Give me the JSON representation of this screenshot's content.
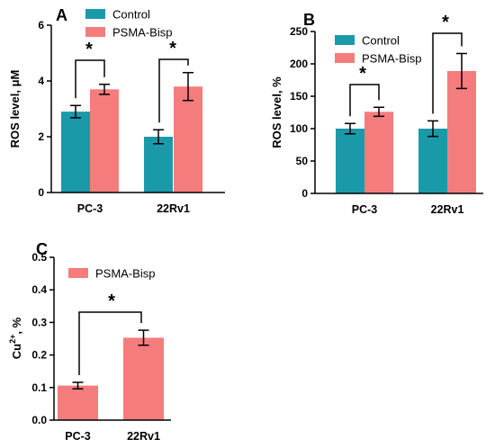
{
  "colors": {
    "control": "#1a9aa8",
    "psma": "#f57c7c",
    "axis": "#000000"
  },
  "chart_data": [
    {
      "id": "A",
      "panel_label": "A",
      "type": "bar",
      "categories": [
        "PC-3",
        "22Rv1"
      ],
      "ylabel": "ROS level, μM",
      "ylim": [
        0,
        6
      ],
      "yticks": [
        "0",
        "2",
        "4",
        "6"
      ],
      "grid": false,
      "legend_position": "top-left",
      "series": [
        {
          "name": "Control",
          "values": [
            2.9,
            2.0
          ],
          "errors": [
            0.22,
            0.25
          ]
        },
        {
          "name": "PSMA-Bisp",
          "values": [
            3.7,
            3.8
          ],
          "errors": [
            0.18,
            0.5
          ]
        }
      ],
      "significance": [
        {
          "category": "PC-3",
          "label": "*"
        },
        {
          "category": "22Rv1",
          "label": "*"
        }
      ]
    },
    {
      "id": "B",
      "panel_label": "B",
      "type": "bar",
      "categories": [
        "PC-3",
        "22Rv1"
      ],
      "ylabel": "ROS level, %",
      "ylim": [
        0,
        250
      ],
      "yticks": [
        "0",
        "50",
        "100",
        "150",
        "200",
        "250"
      ],
      "grid": false,
      "legend_position": "top-left",
      "series": [
        {
          "name": "Control",
          "values": [
            100,
            100
          ],
          "errors": [
            8,
            12
          ]
        },
        {
          "name": "PSMA-Bisp",
          "values": [
            126,
            189
          ],
          "errors": [
            7,
            27
          ]
        }
      ],
      "significance": [
        {
          "category": "PC-3",
          "label": "*"
        },
        {
          "category": "22Rv1",
          "label": "*"
        }
      ]
    },
    {
      "id": "C",
      "panel_label": "C",
      "type": "bar",
      "categories": [
        "PC-3",
        "22Rv1"
      ],
      "ylabel": "Cu",
      "ylabel_superscript": "2+",
      "ylabel_suffix": ", %",
      "ylim": [
        0,
        0.5
      ],
      "yticks": [
        "0.0",
        "0.1",
        "0.2",
        "0.3",
        "0.4",
        "0.5"
      ],
      "grid": false,
      "legend_position": "top-left",
      "series": [
        {
          "name": "PSMA-Bisp",
          "values": [
            0.106,
            0.253
          ],
          "errors": [
            0.01,
            0.023
          ]
        }
      ],
      "significance": [
        {
          "between": [
            "PC-3",
            "22Rv1"
          ],
          "label": "*"
        }
      ]
    }
  ]
}
